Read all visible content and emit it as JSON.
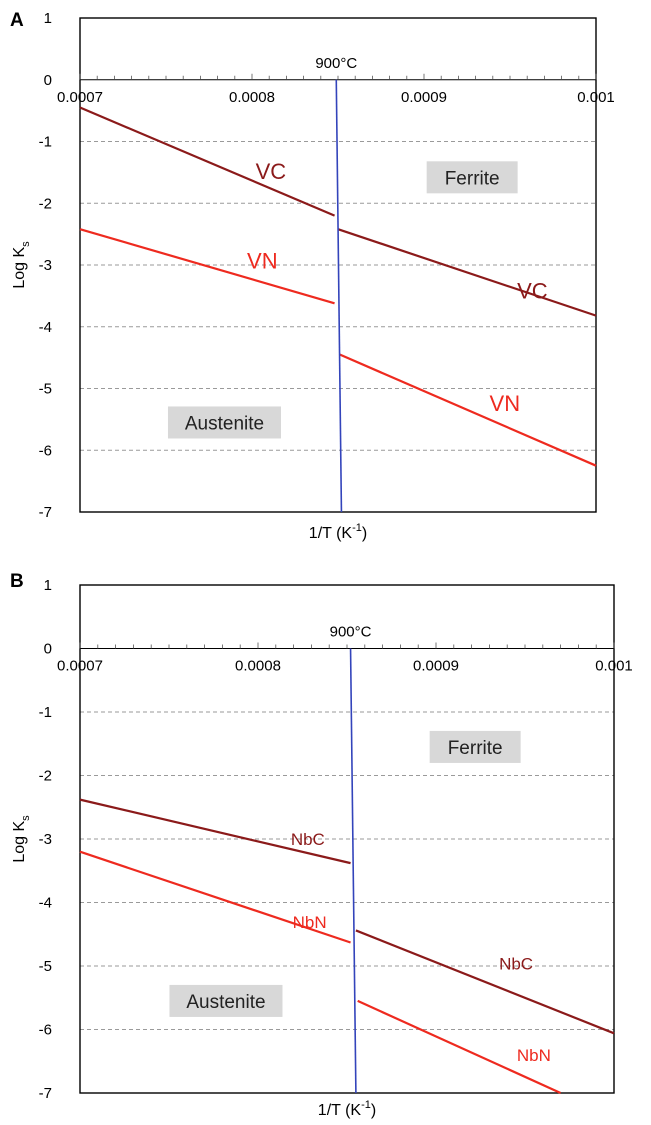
{
  "colors": {
    "carbide": "#8b1a1a",
    "nitride": "#ee2a1f",
    "temperature_line": "#3344bb",
    "grid": "#9a9a9a",
    "region_box": "#d8d8d8"
  },
  "chart_data": [
    {
      "type": "line",
      "panel": "A",
      "xlabel_main": "1/T (K",
      "xlabel_sup": "-1",
      "xlabel_end": ")",
      "ylabel_main": "Log K",
      "ylabel_sub": "s",
      "xlim": [
        0.0007,
        0.001
      ],
      "ylim": [
        -7,
        1
      ],
      "x_ticks": [
        "0.0007",
        "0.0008",
        "0.0009",
        "0.001"
      ],
      "y_ticks": [
        "1",
        "0",
        "-1",
        "-2",
        "-3",
        "-4",
        "-5",
        "-6",
        "-7"
      ],
      "grid": "dashed horizontal",
      "vertical_line": {
        "label": "900°C",
        "x": [
          0.000849,
          0.000852
        ],
        "y": [
          0,
          -7
        ]
      },
      "series": [
        {
          "color": "carbide",
          "x": [
            0.0007,
            0.000848
          ],
          "y": [
            -0.45,
            -2.2
          ]
        },
        {
          "color": "carbide",
          "x": [
            0.00085,
            0.001
          ],
          "y": [
            -2.42,
            -3.82
          ]
        },
        {
          "color": "nitride",
          "x": [
            0.0007,
            0.000848
          ],
          "y": [
            -2.42,
            -3.62
          ]
        },
        {
          "color": "nitride",
          "x": [
            0.000851,
            0.001
          ],
          "y": [
            -4.45,
            -6.25
          ]
        }
      ],
      "labels": [
        {
          "text": "VC",
          "x": 0.000811,
          "y": -1.48,
          "color": "carbide",
          "size": 22
        },
        {
          "text": "VN",
          "x": 0.000806,
          "y": -2.93,
          "color": "nitride",
          "size": 22
        },
        {
          "text": "VC",
          "x": 0.000963,
          "y": -3.42,
          "color": "carbide",
          "size": 22
        },
        {
          "text": "VN",
          "x": 0.000947,
          "y": -5.24,
          "color": "nitride",
          "size": 22
        }
      ],
      "regions": [
        {
          "text": "Ferrite",
          "x": 0.000928,
          "y": -1.58
        },
        {
          "text": "Austenite",
          "x": 0.000784,
          "y": -5.55
        }
      ]
    },
    {
      "type": "line",
      "panel": "B",
      "xlabel_main": "1/T (K",
      "xlabel_sup": "-1",
      "xlabel_end": ")",
      "ylabel_main": "Log K",
      "ylabel_sub": "s",
      "xlim": [
        0.0007,
        0.001
      ],
      "ylim": [
        -7,
        1
      ],
      "x_ticks": [
        "0.0007",
        "0.0008",
        "0.0009",
        "0.001"
      ],
      "y_ticks": [
        "1",
        "0",
        "-1",
        "-2",
        "-3",
        "-4",
        "-5",
        "-6",
        "-7"
      ],
      "grid": "dashed horizontal",
      "vertical_line": {
        "label": "900°C",
        "x": [
          0.000852,
          0.000855
        ],
        "y": [
          0,
          -7
        ]
      },
      "series": [
        {
          "color": "carbide",
          "x": [
            0.0007,
            0.000852
          ],
          "y": [
            -2.38,
            -3.38
          ]
        },
        {
          "color": "carbide",
          "x": [
            0.000855,
            0.001
          ],
          "y": [
            -4.44,
            -6.06
          ]
        },
        {
          "color": "nitride",
          "x": [
            0.0007,
            0.000852
          ],
          "y": [
            -3.2,
            -4.63
          ]
        },
        {
          "color": "nitride",
          "x": [
            0.000856,
            0.00097
          ],
          "y": [
            -5.55,
            -7.0
          ]
        }
      ],
      "labels": [
        {
          "text": "NbC",
          "x": 0.000828,
          "y": -3.0,
          "color": "carbide",
          "size": 17
        },
        {
          "text": "NbC",
          "x": 0.000945,
          "y": -4.96,
          "color": "carbide",
          "size": 17
        },
        {
          "text": "NbN",
          "x": 0.000829,
          "y": -4.31,
          "color": "nitride",
          "size": 17
        },
        {
          "text": "NbN",
          "x": 0.000955,
          "y": -6.4,
          "color": "nitride",
          "size": 17
        }
      ],
      "regions": [
        {
          "text": "Ferrite",
          "x": 0.000922,
          "y": -1.55
        },
        {
          "text": "Austenite",
          "x": 0.000782,
          "y": -5.55
        }
      ]
    }
  ]
}
